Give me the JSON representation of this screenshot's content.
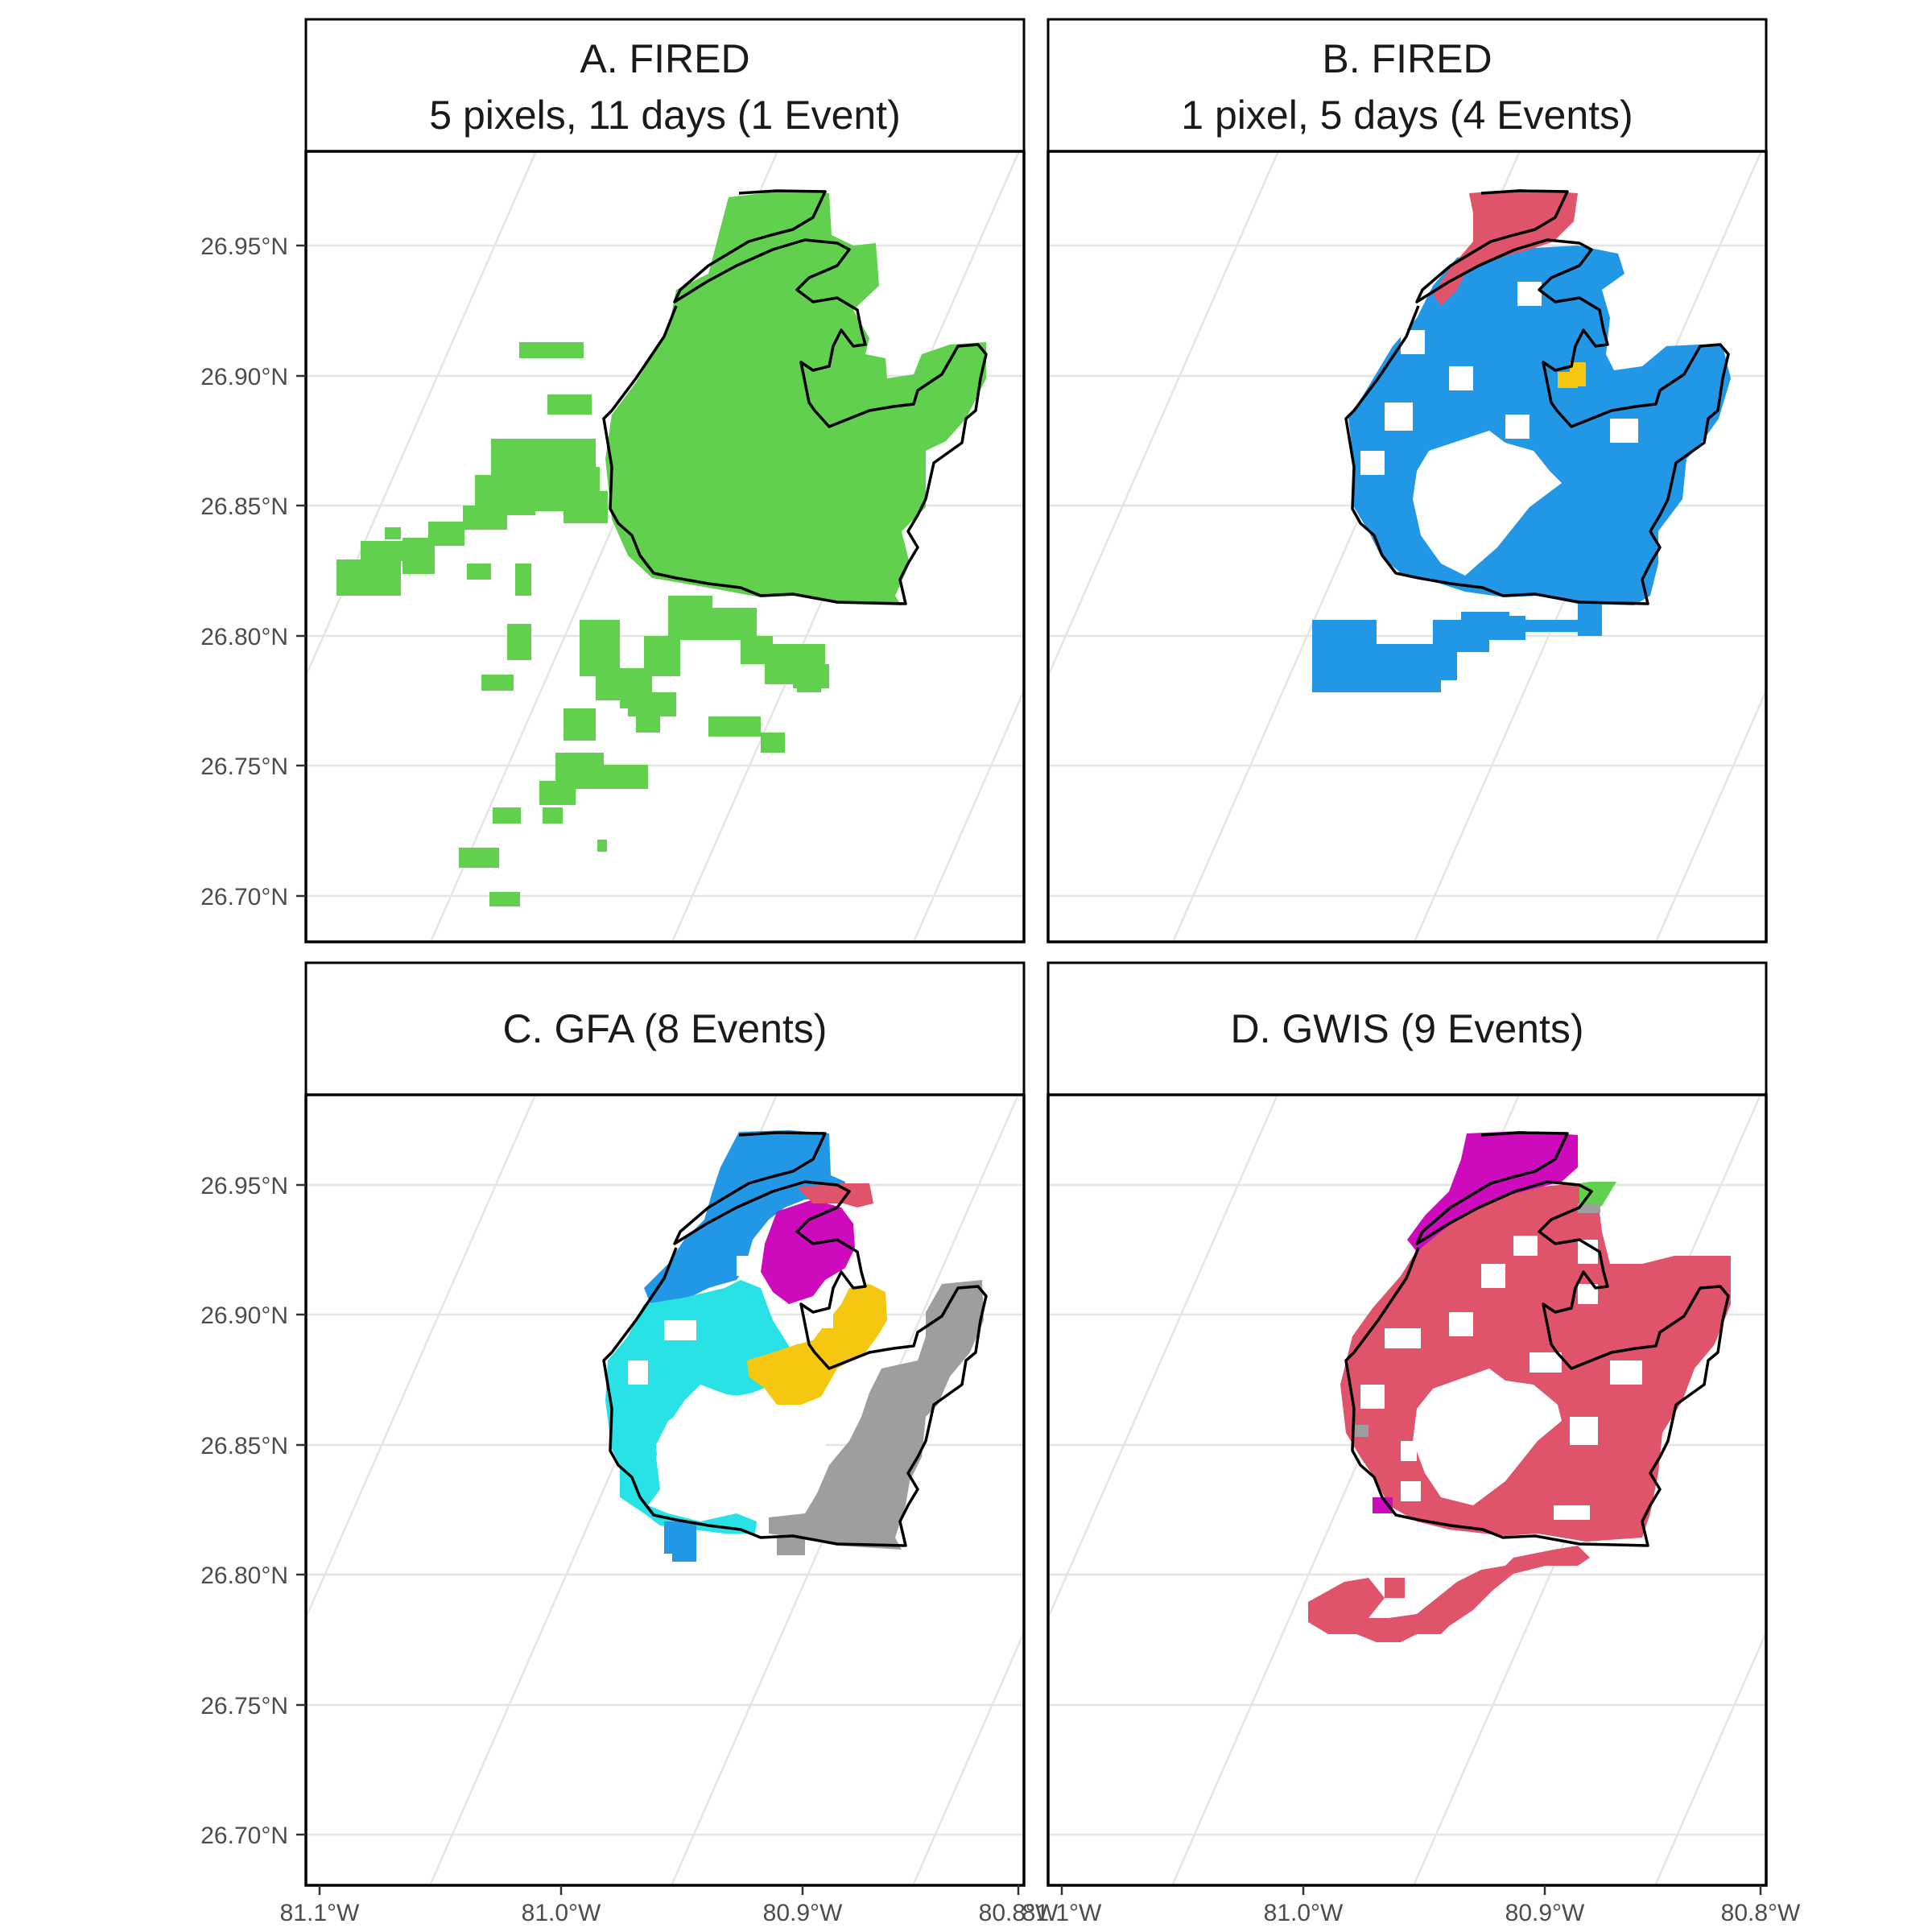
{
  "figure": {
    "lat_ticks": [
      "26.95°N",
      "26.90°N",
      "26.85°N",
      "26.80°N",
      "26.75°N",
      "26.70°N"
    ],
    "lon_ticks": [
      "81.1°W",
      "81.0°W",
      "80.9°W",
      "80.8°W"
    ],
    "panels": [
      {
        "id": "A",
        "title": [
          "A. FIRED",
          "5 pixels, 11 days (1 Event)"
        ],
        "colors": [
          "#61d04f"
        ]
      },
      {
        "id": "B",
        "title": [
          "B. FIRED",
          "1 pixel, 5 days (4 Events)"
        ],
        "colors": [
          "#2297e6",
          "#df536b",
          "#f5c710"
        ]
      },
      {
        "id": "C",
        "title": [
          "C. GFA (8 Events)"
        ],
        "colors": [
          "#2297e6",
          "#28e2e5",
          "#cd0bbc",
          "#f5c710",
          "#9e9e9e",
          "#df536b"
        ]
      },
      {
        "id": "D",
        "title": [
          "D. GWIS (9 Events)"
        ],
        "colors": [
          "#df536b",
          "#cd0bbc",
          "#61d04f",
          "#9e9e9e"
        ]
      }
    ]
  }
}
